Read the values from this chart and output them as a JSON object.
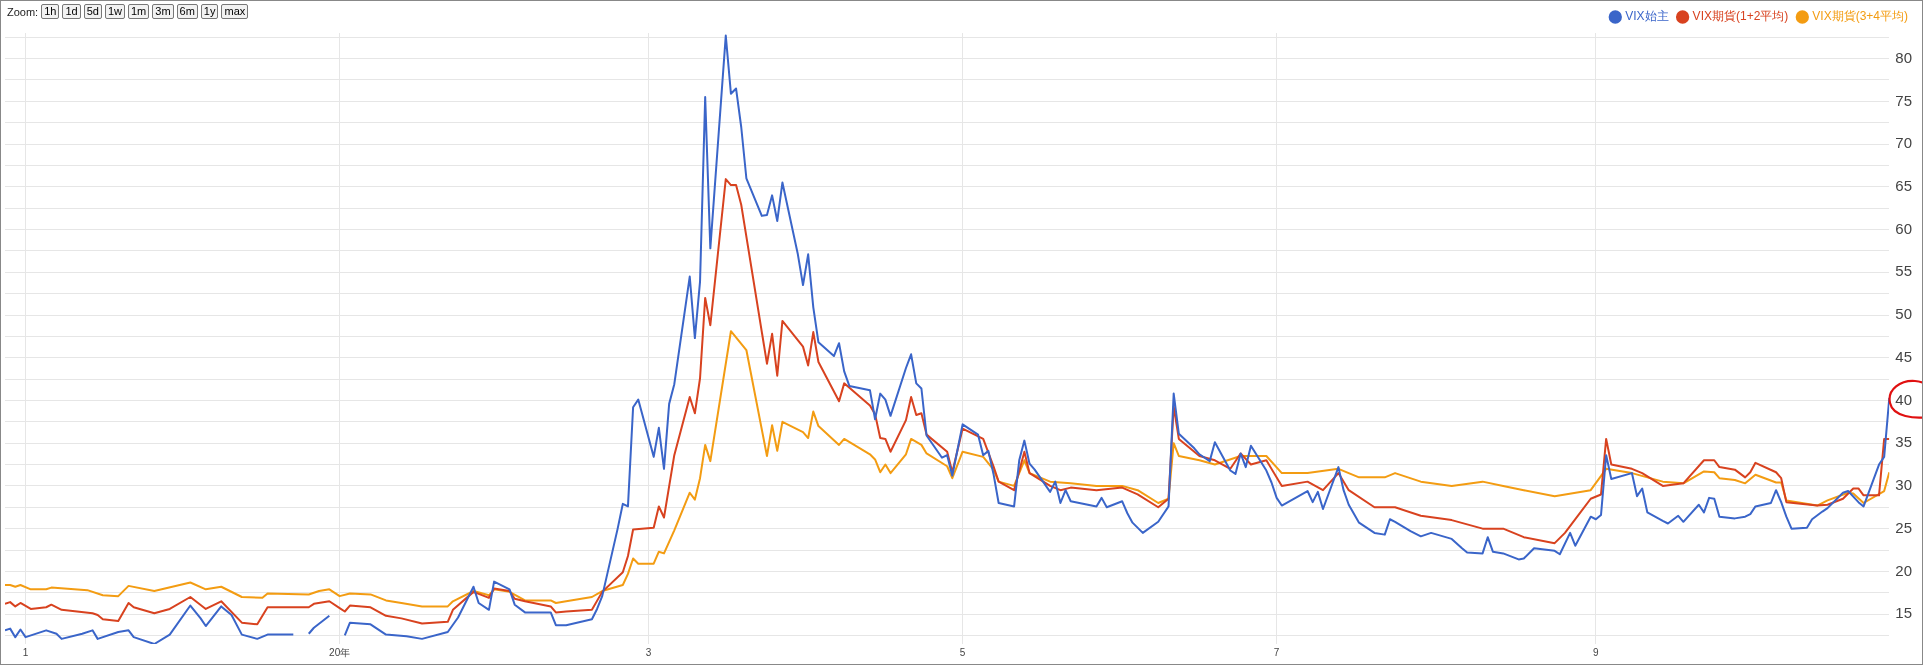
{
  "chart_data": {
    "type": "line",
    "annotations": [
      "Zoom:",
      "1h",
      "1d",
      "5d",
      "1w",
      "1m",
      "3m",
      "6m",
      "1y",
      "max"
    ],
    "xlim": [
      "2019-10-28",
      "2020-10-28"
    ],
    "xticks": [
      {
        "value": "2019-11-01",
        "label": "1"
      },
      {
        "value": "2020-01-01",
        "label": "20年"
      },
      {
        "value": "2020-03-01",
        "label": "3"
      },
      {
        "value": "2020-05-01",
        "label": "5"
      },
      {
        "value": "2020-07-01",
        "label": "7"
      },
      {
        "value": "2020-09-01",
        "label": "9"
      }
    ],
    "ylim": [
      11.5,
      83
    ],
    "yticks": [
      {
        "value": 12.5,
        "label": null
      },
      15,
      {
        "value": 17.5,
        "label": null
      },
      20,
      {
        "value": 22.5,
        "label": null
      },
      25,
      {
        "value": 27.5,
        "label": null
      },
      30,
      {
        "value": 32.5,
        "label": null
      },
      35,
      {
        "value": 37.5,
        "label": null
      },
      40,
      {
        "value": 42.5,
        "label": null
      },
      45,
      {
        "value": 47.5,
        "label": null
      },
      50,
      {
        "value": 52.5,
        "label": null
      },
      55,
      {
        "value": 57.5,
        "label": null
      },
      60,
      {
        "value": 62.5,
        "label": null
      },
      65,
      {
        "value": 67.5,
        "label": null
      },
      70,
      {
        "value": 72.5,
        "label": null
      },
      75,
      {
        "value": 77.5,
        "label": null
      },
      80,
      {
        "value": 82.5,
        "label": null
      }
    ],
    "grid": true,
    "legend": "top right",
    "series": [
      {
        "name": "VIX始主",
        "color": "#3a65c9",
        "x": [
          "2019-10-28",
          "2019-10-29",
          "2019-10-30",
          "2019-10-31",
          "2019-11-01",
          "2019-11-05",
          "2019-11-07",
          "2019-11-08",
          "2019-11-12",
          "2019-11-14",
          "2019-11-15",
          "2019-11-19",
          "2019-11-21",
          "2019-11-22",
          "2019-11-26",
          "2019-11-29",
          "2019-12-03",
          "2019-12-05",
          "2019-12-06",
          "2019-12-09",
          "2019-12-11",
          "2019-12-13",
          "2019-12-16",
          "2019-12-18",
          "2019-12-23",
          "2019-12-24",
          "2019-12-26",
          "2019-12-27",
          "2019-12-30",
          "2020-01-01",
          "2020-01-02",
          "2020-01-03",
          "2020-01-07",
          "2020-01-10",
          "2020-01-14",
          "2020-01-17",
          "2020-01-22",
          "2020-01-24",
          "2020-01-27",
          "2020-01-28",
          "2020-01-30",
          "2020-01-31",
          "2020-02-03",
          "2020-02-04",
          "2020-02-06",
          "2020-02-11",
          "2020-02-12",
          "2020-02-14",
          "2020-02-19",
          "2020-02-20",
          "2020-02-21",
          "2020-02-24",
          "2020-02-25",
          "2020-02-26",
          "2020-02-27",
          "2020-02-28",
          "2020-03-02",
          "2020-03-03",
          "2020-03-04",
          "2020-03-05",
          "2020-03-06",
          "2020-03-09",
          "2020-03-10",
          "2020-03-11",
          "2020-03-12",
          "2020-03-13",
          "2020-03-16",
          "2020-03-17",
          "2020-03-18",
          "2020-03-19",
          "2020-03-20",
          "2020-03-23",
          "2020-03-24",
          "2020-03-25",
          "2020-03-26",
          "2020-03-27",
          "2020-03-30",
          "2020-03-31",
          "2020-04-01",
          "2020-04-02",
          "2020-04-03",
          "2020-04-06",
          "2020-04-07",
          "2020-04-08",
          "2020-04-09",
          "2020-04-13",
          "2020-04-14",
          "2020-04-15",
          "2020-04-16",
          "2020-04-17",
          "2020-04-20",
          "2020-04-21",
          "2020-04-22",
          "2020-04-23",
          "2020-04-24",
          "2020-04-27",
          "2020-04-28",
          "2020-04-29",
          "2020-04-30",
          "2020-05-01",
          "2020-05-04",
          "2020-05-05",
          "2020-05-06",
          "2020-05-07",
          "2020-05-08",
          "2020-05-11",
          "2020-05-12",
          "2020-05-13",
          "2020-05-14",
          "2020-05-15",
          "2020-05-18",
          "2020-05-19",
          "2020-05-20",
          "2020-05-21",
          "2020-05-22",
          "2020-05-27",
          "2020-05-28",
          "2020-05-29",
          "2020-06-01",
          "2020-06-02",
          "2020-06-03",
          "2020-06-05",
          "2020-06-08",
          "2020-06-10",
          "2020-06-11",
          "2020-06-12",
          "2020-06-15",
          "2020-06-16",
          "2020-06-18",
          "2020-06-19",
          "2020-06-22",
          "2020-06-23",
          "2020-06-24",
          "2020-06-25",
          "2020-06-26",
          "2020-06-29",
          "2020-06-30",
          "2020-07-01",
          "2020-07-02",
          "2020-07-07",
          "2020-07-08",
          "2020-07-09",
          "2020-07-10",
          "2020-07-13",
          "2020-07-14",
          "2020-07-15",
          "2020-07-17",
          "2020-07-20",
          "2020-07-22",
          "2020-07-23",
          "2020-07-24",
          "2020-07-27",
          "2020-07-29",
          "2020-07-31",
          "2020-08-04",
          "2020-08-06",
          "2020-08-07",
          "2020-08-10",
          "2020-08-11",
          "2020-08-12",
          "2020-08-14",
          "2020-08-17",
          "2020-08-18",
          "2020-08-20",
          "2020-08-24",
          "2020-08-25",
          "2020-08-27",
          "2020-08-28",
          "2020-08-31",
          "2020-09-01",
          "2020-09-02",
          "2020-09-03",
          "2020-09-04",
          "2020-09-08",
          "2020-09-09",
          "2020-09-10",
          "2020-09-11",
          "2020-09-14",
          "2020-09-15",
          "2020-09-17",
          "2020-09-18",
          "2020-09-21",
          "2020-09-22",
          "2020-09-23",
          "2020-09-24",
          "2020-09-25",
          "2020-09-28",
          "2020-09-30",
          "2020-10-01",
          "2020-10-02",
          "2020-10-05",
          "2020-10-06",
          "2020-10-07",
          "2020-10-08",
          "2020-10-09",
          "2020-10-12",
          "2020-10-13",
          "2020-10-15",
          "2020-10-16",
          "2020-10-19",
          "2020-10-20",
          "2020-10-22",
          "2020-10-23",
          "2020-10-26",
          "2020-10-27",
          "2020-10-28"
        ],
        "values": [
          13.1,
          13.3,
          12.3,
          13.2,
          12.3,
          13.1,
          12.7,
          12.1,
          12.7,
          13.1,
          12.1,
          12.9,
          13.1,
          12.3,
          11.5,
          12.6,
          16.0,
          14.5,
          13.6,
          15.9,
          14.9,
          12.6,
          12.1,
          12.6,
          12.6,
          null,
          12.7,
          13.4,
          14.8,
          null,
          12.5,
          14.0,
          13.8,
          12.6,
          12.4,
          12.1,
          12.9,
          14.6,
          18.2,
          16.3,
          15.5,
          18.8,
          17.9,
          16.1,
          15.2,
          15.2,
          13.7,
          13.7,
          14.4,
          15.6,
          17.1,
          25.0,
          27.9,
          27.6,
          39.2,
          40.1,
          33.4,
          36.8,
          32.0,
          39.6,
          41.9,
          54.5,
          47.3,
          53.9,
          75.5,
          57.8,
          82.7,
          75.9,
          76.5,
          72.0,
          66.0,
          61.6,
          61.7,
          64.0,
          61.0,
          65.5,
          57.1,
          53.5,
          57.1,
          50.9,
          46.8,
          45.2,
          46.7,
          43.4,
          41.7,
          41.2,
          37.8,
          40.8,
          40.1,
          38.2,
          43.8,
          45.4,
          42.0,
          41.4,
          35.9,
          33.3,
          33.6,
          31.2,
          34.2,
          37.2,
          36.0,
          33.6,
          34.1,
          31.4,
          28.0,
          27.6,
          33.0,
          35.3,
          32.6,
          31.9,
          29.3,
          30.5,
          28.0,
          29.5,
          28.2,
          27.6,
          28.6,
          27.5,
          28.2,
          26.8,
          25.7,
          24.5,
          25.8,
          27.6,
          40.8,
          36.1,
          34.4,
          33.7,
          32.9,
          35.1,
          31.8,
          31.4,
          33.8,
          32.2,
          34.7,
          31.8,
          30.4,
          28.6,
          27.7,
          29.4,
          28.1,
          29.3,
          27.3,
          32.2,
          29.5,
          27.8,
          25.7,
          24.5,
          24.3,
          26.1,
          25.8,
          24.7,
          24.1,
          24.5,
          23.8,
          22.7,
          22.2,
          22.1,
          24.0,
          22.3,
          22.1,
          21.4,
          21.5,
          22.7,
          22.4,
          22.0,
          24.5,
          23.0,
          26.4,
          26.1,
          26.6,
          33.6,
          30.8,
          31.5,
          28.8,
          29.7,
          26.9,
          25.9,
          25.6,
          26.5,
          25.8,
          27.8,
          26.9,
          28.6,
          28.5,
          26.4,
          26.2,
          26.4,
          26.7,
          27.6,
          28.0,
          29.5,
          28.1,
          26.4,
          25.0,
          25.1,
          26.1,
          27.0,
          27.4,
          29.2,
          29.4,
          28.1,
          27.6,
          32.5,
          33.4,
          40.3
        ]
      },
      {
        "name": "VIX期貨(1+2平均)",
        "color": "#d8421f",
        "x": [
          "2019-10-28",
          "2019-10-29",
          "2019-10-30",
          "2019-10-31",
          "2019-11-02",
          "2019-11-05",
          "2019-11-06",
          "2019-11-08",
          "2019-11-14",
          "2019-11-15",
          "2019-11-16",
          "2019-11-19",
          "2019-11-21",
          "2019-11-22",
          "2019-11-26",
          "2019-11-29",
          "2019-12-03",
          "2019-12-06",
          "2019-12-09",
          "2019-12-13",
          "2019-12-16",
          "2019-12-18",
          "2019-12-26",
          "2019-12-27",
          "2019-12-30",
          "2020-01-01",
          "2020-01-02",
          "2020-01-03",
          "2020-01-07",
          "2020-01-10",
          "2020-01-13",
          "2020-01-17",
          "2020-01-22",
          "2020-01-23",
          "2020-01-27",
          "2020-01-30",
          "2020-01-31",
          "2020-02-03",
          "2020-02-04",
          "2020-02-06",
          "2020-02-11",
          "2020-02-12",
          "2020-02-14",
          "2020-02-19",
          "2020-02-21",
          "2020-02-25",
          "2020-02-26",
          "2020-02-27",
          "2020-03-02",
          "2020-03-03",
          "2020-03-04",
          "2020-03-06",
          "2020-03-09",
          "2020-03-10",
          "2020-03-11",
          "2020-03-12",
          "2020-03-13",
          "2020-03-16",
          "2020-03-17",
          "2020-03-18",
          "2020-03-19",
          "2020-03-24",
          "2020-03-25",
          "2020-03-26",
          "2020-03-27",
          "2020-03-31",
          "2020-04-01",
          "2020-04-02",
          "2020-04-03",
          "2020-04-07",
          "2020-04-08",
          "2020-04-13",
          "2020-04-14",
          "2020-04-15",
          "2020-04-16",
          "2020-04-17",
          "2020-04-20",
          "2020-04-21",
          "2020-04-22",
          "2020-04-23",
          "2020-04-24",
          "2020-04-28",
          "2020-04-29",
          "2020-05-01",
          "2020-05-05",
          "2020-05-07",
          "2020-05-08",
          "2020-05-11",
          "2020-05-13",
          "2020-05-14",
          "2020-05-18",
          "2020-05-20",
          "2020-05-22",
          "2020-05-27",
          "2020-06-01",
          "2020-06-04",
          "2020-06-08",
          "2020-06-10",
          "2020-06-11",
          "2020-06-12",
          "2020-06-16",
          "2020-06-19",
          "2020-06-22",
          "2020-06-24",
          "2020-06-26",
          "2020-06-29",
          "2020-07-02",
          "2020-07-07",
          "2020-07-10",
          "2020-07-13",
          "2020-07-15",
          "2020-07-20",
          "2020-07-24",
          "2020-07-29",
          "2020-08-04",
          "2020-08-10",
          "2020-08-14",
          "2020-08-18",
          "2020-08-24",
          "2020-08-26",
          "2020-08-31",
          "2020-09-02",
          "2020-09-03",
          "2020-09-04",
          "2020-09-08",
          "2020-09-10",
          "2020-09-14",
          "2020-09-18",
          "2020-09-22",
          "2020-09-24",
          "2020-09-25",
          "2020-09-28",
          "2020-09-30",
          "2020-10-01",
          "2020-10-02",
          "2020-10-06",
          "2020-10-07",
          "2020-10-08",
          "2020-10-14",
          "2020-10-16",
          "2020-10-19",
          "2020-10-21",
          "2020-10-22",
          "2020-10-23",
          "2020-10-26",
          "2020-10-27",
          "2020-10-28"
        ],
        "values": [
          16.2,
          16.4,
          15.9,
          16.3,
          15.6,
          15.8,
          16.1,
          15.5,
          15.1,
          14.9,
          14.4,
          14.2,
          16.3,
          15.8,
          15.1,
          15.6,
          17.0,
          15.6,
          16.5,
          14.0,
          13.8,
          15.8,
          15.8,
          16.2,
          16.5,
          15.7,
          15.3,
          16.0,
          15.8,
          14.8,
          14.5,
          13.9,
          14.1,
          15.5,
          17.6,
          16.9,
          18.0,
          17.7,
          16.8,
          16.5,
          15.9,
          15.2,
          15.3,
          15.5,
          17.6,
          19.9,
          21.8,
          24.9,
          25.1,
          27.6,
          26.3,
          33.6,
          40.4,
          38.5,
          42.6,
          52.0,
          48.8,
          65.9,
          65.2,
          65.2,
          62.9,
          44.3,
          47.8,
          42.9,
          49.3,
          46.3,
          44.1,
          48.0,
          44.5,
          39.9,
          42.0,
          39.4,
          38.4,
          35.6,
          35.5,
          34.0,
          37.7,
          40.4,
          38.3,
          38.5,
          36.0,
          34.0,
          31.6,
          36.7,
          35.5,
          32.3,
          30.5,
          29.5,
          34.0,
          31.5,
          30.0,
          29.5,
          29.8,
          29.5,
          29.8,
          29.0,
          27.5,
          28.5,
          39.3,
          35.5,
          33.5,
          33.0,
          32.0,
          33.8,
          32.5,
          33.0,
          30.0,
          30.5,
          29.5,
          31.5,
          29.5,
          27.5,
          27.5,
          26.5,
          26.0,
          25.0,
          25.0,
          24.0,
          23.3,
          24.5,
          28.5,
          29.0,
          35.5,
          32.5,
          32.0,
          31.5,
          30.0,
          30.3,
          33.0,
          33.0,
          32.2,
          31.9,
          31.0,
          31.6,
          32.7,
          31.6,
          30.9,
          28.1,
          27.7,
          27.8,
          28.5,
          29.7,
          29.7,
          28.9,
          28.9,
          35.5,
          35.5
        ]
      },
      {
        "name": "VIX期貨(3+4平均)",
        "color": "#f39c12",
        "x": [
          "2019-10-28",
          "2019-10-29",
          "2019-10-30",
          "2019-10-31",
          "2019-11-02",
          "2019-11-05",
          "2019-11-06",
          "2019-11-13",
          "2019-11-16",
          "2019-11-19",
          "2019-11-21",
          "2019-11-26",
          "2019-12-03",
          "2019-12-06",
          "2019-12-09",
          "2019-12-13",
          "2019-12-17",
          "2019-12-18",
          "2019-12-26",
          "2019-12-28",
          "2019-12-30",
          "2020-01-01",
          "2020-01-03",
          "2020-01-07",
          "2020-01-10",
          "2020-01-13",
          "2020-01-17",
          "2020-01-22",
          "2020-01-23",
          "2020-01-27",
          "2020-01-30",
          "2020-01-31",
          "2020-02-03",
          "2020-02-06",
          "2020-02-11",
          "2020-02-12",
          "2020-02-14",
          "2020-02-19",
          "2020-02-21",
          "2020-02-25",
          "2020-02-26",
          "2020-02-27",
          "2020-02-28",
          "2020-03-02",
          "2020-03-03",
          "2020-03-04",
          "2020-03-06",
          "2020-03-09",
          "2020-03-10",
          "2020-03-11",
          "2020-03-12",
          "2020-03-13",
          "2020-03-17",
          "2020-03-20",
          "2020-03-24",
          "2020-03-25",
          "2020-03-26",
          "2020-03-27",
          "2020-03-31",
          "2020-04-01",
          "2020-04-02",
          "2020-04-03",
          "2020-04-07",
          "2020-04-08",
          "2020-04-13",
          "2020-04-14",
          "2020-04-15",
          "2020-04-16",
          "2020-04-17",
          "2020-04-20",
          "2020-04-21",
          "2020-04-23",
          "2020-04-24",
          "2020-04-28",
          "2020-04-29",
          "2020-05-01",
          "2020-05-05",
          "2020-05-07",
          "2020-05-08",
          "2020-05-11",
          "2020-05-13",
          "2020-05-14",
          "2020-05-18",
          "2020-05-22",
          "2020-05-27",
          "2020-06-01",
          "2020-06-04",
          "2020-06-08",
          "2020-06-10",
          "2020-06-11",
          "2020-06-12",
          "2020-06-16",
          "2020-06-19",
          "2020-06-24",
          "2020-06-29",
          "2020-07-02",
          "2020-07-07",
          "2020-07-13",
          "2020-07-17",
          "2020-07-22",
          "2020-07-24",
          "2020-07-29",
          "2020-08-04",
          "2020-08-10",
          "2020-08-14",
          "2020-08-18",
          "2020-08-24",
          "2020-08-31",
          "2020-09-03",
          "2020-09-08",
          "2020-09-14",
          "2020-09-18",
          "2020-09-22",
          "2020-09-24",
          "2020-09-25",
          "2020-09-28",
          "2020-09-30",
          "2020-10-02",
          "2020-10-06",
          "2020-10-07",
          "2020-10-08",
          "2020-10-14",
          "2020-10-16",
          "2020-10-20",
          "2020-10-21",
          "2020-10-23",
          "2020-10-27",
          "2020-10-28"
        ],
        "values": [
          18.4,
          18.4,
          18.2,
          18.4,
          17.9,
          17.9,
          18.1,
          17.8,
          17.2,
          17.1,
          18.3,
          17.7,
          18.7,
          17.9,
          18.2,
          17.0,
          16.9,
          17.4,
          17.3,
          17.7,
          17.9,
          17.1,
          17.4,
          17.3,
          16.6,
          16.3,
          15.9,
          15.9,
          16.5,
          17.7,
          17.2,
          17.9,
          17.6,
          16.6,
          16.6,
          16.3,
          16.5,
          17.0,
          17.7,
          18.4,
          19.7,
          21.5,
          20.9,
          20.9,
          22.3,
          22.1,
          24.8,
          29.2,
          28.4,
          30.9,
          34.8,
          32.9,
          48.1,
          45.9,
          33.5,
          37.1,
          34.1,
          37.5,
          36.3,
          35.6,
          38.7,
          37.0,
          34.8,
          35.5,
          33.7,
          33.1,
          31.6,
          32.5,
          31.5,
          33.7,
          35.5,
          34.8,
          33.8,
          32.3,
          30.9,
          34.0,
          33.4,
          31.9,
          30.5,
          30.0,
          33.0,
          31.5,
          30.5,
          30.3,
          30.0,
          30.0,
          29.5,
          28.0,
          28.5,
          35.0,
          33.5,
          33.0,
          32.5,
          33.5,
          33.5,
          31.5,
          31.5,
          32.0,
          31.0,
          31.0,
          31.5,
          30.5,
          30.0,
          30.5,
          30.0,
          29.5,
          28.8,
          29.5,
          32.0,
          31.5,
          30.5,
          30.3,
          31.7,
          31.6,
          30.9,
          30.7,
          30.3,
          31.3,
          30.4,
          30.4,
          28.3,
          27.7,
          28.3,
          29.2,
          29.1,
          28.0,
          29.4,
          31.6
        ]
      }
    ]
  }
}
